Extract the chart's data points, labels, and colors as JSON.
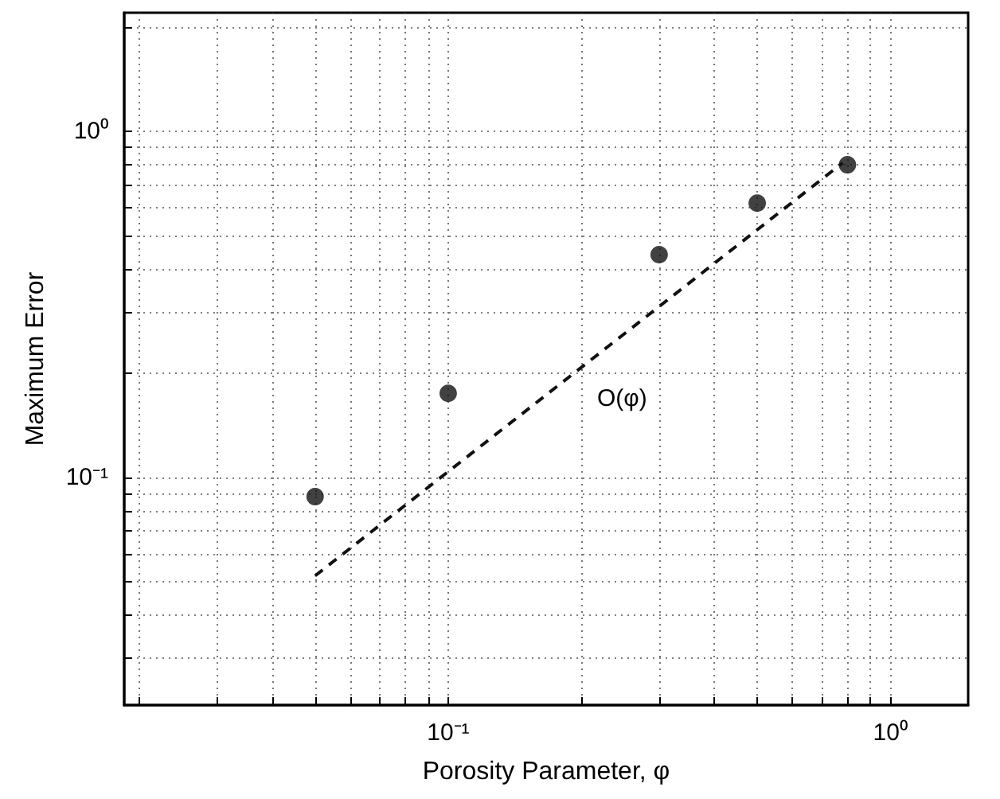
{
  "chart_data": {
    "type": "scatter",
    "xlabel": "Porosity Parameter, φ",
    "ylabel": "Maximum Error",
    "log": "xy",
    "grid": true,
    "marker": "circle",
    "xlim": [
      0.0185,
      1.5
    ],
    "ylim": [
      0.022,
      2.2
    ],
    "xticks": [
      {
        "value": 0.02,
        "label": null
      },
      {
        "value": 0.03,
        "label": null
      },
      {
        "value": 0.04,
        "label": null
      },
      {
        "value": 0.05,
        "label": null
      },
      {
        "value": 0.06,
        "label": null
      },
      {
        "value": 0.07,
        "label": null
      },
      {
        "value": 0.08,
        "label": null
      },
      {
        "value": 0.09,
        "label": null
      },
      {
        "value": 0.1,
        "label": "10⁻¹"
      },
      {
        "value": 0.2,
        "label": null
      },
      {
        "value": 0.3,
        "label": null
      },
      {
        "value": 0.4,
        "label": null
      },
      {
        "value": 0.5,
        "label": null
      },
      {
        "value": 0.6,
        "label": null
      },
      {
        "value": 0.7,
        "label": null
      },
      {
        "value": 0.8,
        "label": null
      },
      {
        "value": 0.9,
        "label": null
      },
      {
        "value": 1,
        "label": "10⁰"
      }
    ],
    "yticks": [
      {
        "value": 0.03,
        "label": null
      },
      {
        "value": 0.04,
        "label": null
      },
      {
        "value": 0.05,
        "label": null
      },
      {
        "value": 0.06,
        "label": null
      },
      {
        "value": 0.07,
        "label": null
      },
      {
        "value": 0.08,
        "label": null
      },
      {
        "value": 0.09,
        "label": null
      },
      {
        "value": 0.1,
        "label": "10⁻¹"
      },
      {
        "value": 0.2,
        "label": null
      },
      {
        "value": 0.3,
        "label": null
      },
      {
        "value": 0.4,
        "label": null
      },
      {
        "value": 0.5,
        "label": null
      },
      {
        "value": 0.6,
        "label": null
      },
      {
        "value": 0.7,
        "label": null
      },
      {
        "value": 0.8,
        "label": null
      },
      {
        "value": 0.9,
        "label": null
      },
      {
        "value": 1,
        "label": "10⁰"
      },
      {
        "value": 2,
        "label": null
      }
    ],
    "series": [
      {
        "type": "scatter",
        "color": "#111111",
        "x": [
          0.05,
          0.1,
          0.3,
          0.5,
          0.8
        ],
        "values": [
          0.088,
          0.175,
          0.44,
          0.62,
          0.8
        ]
      },
      {
        "type": "line",
        "color": "#111111",
        "marker": "none",
        "line_style": "dashed",
        "x": [
          0.05,
          0.78
        ],
        "values": [
          0.052,
          0.81
        ]
      }
    ],
    "annotations": [
      "O(φ)"
    ]
  }
}
